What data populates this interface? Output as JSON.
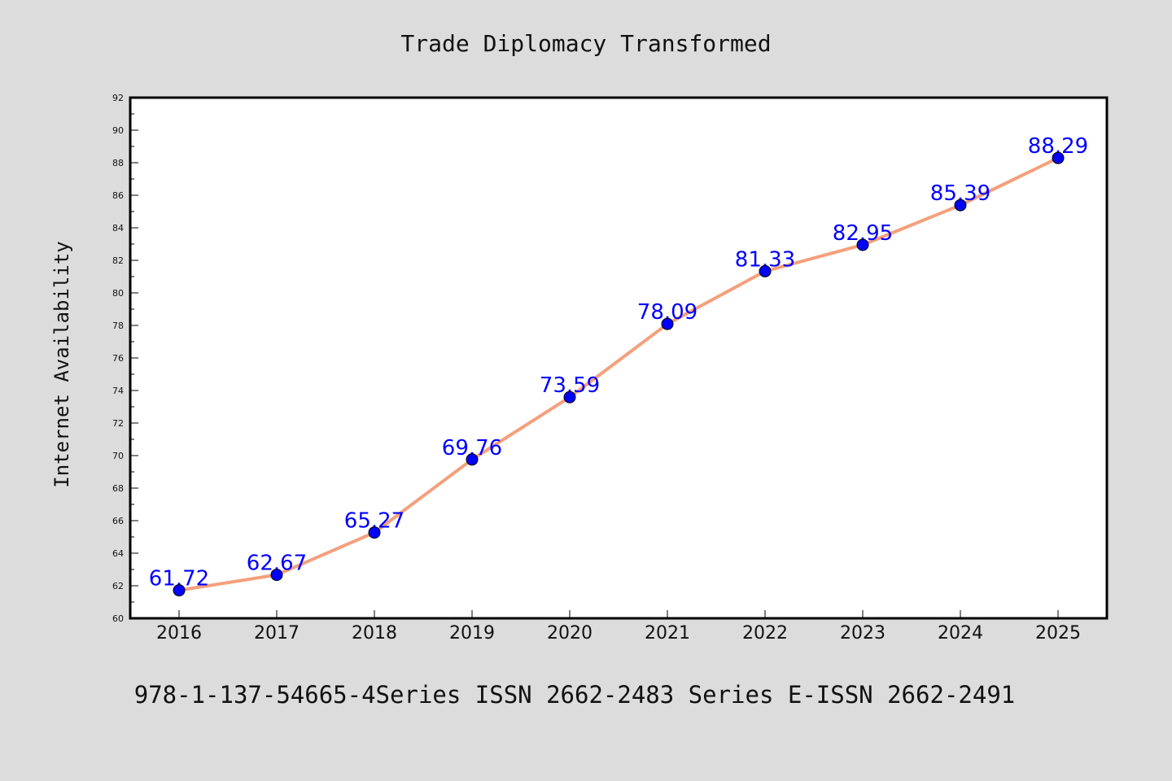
{
  "chart_data": {
    "type": "line",
    "title": "Trade Diplomacy Transformed",
    "xlabel": "",
    "ylabel": "Internet Availability",
    "x": [
      "2016",
      "2017",
      "2018",
      "2019",
      "2020",
      "2021",
      "2022",
      "2023",
      "2024",
      "2025"
    ],
    "series": [
      {
        "values": [
          61.72,
          62.67,
          65.27,
          69.76,
          73.59,
          78.09,
          81.33,
          82.95,
          85.39,
          88.29
        ],
        "labels": [
          "61.72",
          "62.67",
          "65.27",
          "69.76",
          "73.59",
          "78.09",
          "81.33",
          "82.95",
          "85.39",
          "88.29"
        ]
      }
    ],
    "ylim": [
      60,
      92
    ],
    "yticks": [
      "60",
      "62",
      "64",
      "66",
      "68",
      "70",
      "72",
      "74",
      "76",
      "78",
      "80",
      "82",
      "84",
      "86",
      "88",
      "90",
      "92"
    ],
    "grid": false,
    "legend": "none",
    "colors": {
      "line": "#f4a07c",
      "marker": "#0000ff",
      "data_label": "#0000ff",
      "plot_background": "#ffffff",
      "figure_background": "#dcdcdc"
    }
  },
  "footer": "978-1-137-54665-4Series ISSN 2662-2483 Series E-ISSN 2662-2491"
}
